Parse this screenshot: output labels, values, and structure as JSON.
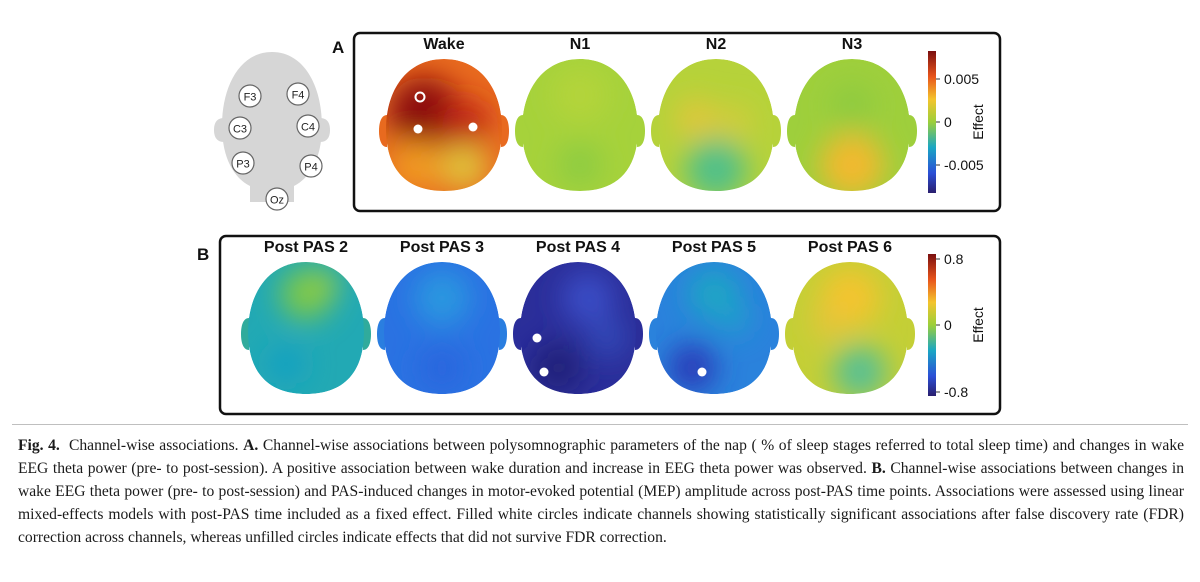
{
  "montage": {
    "channels": [
      "F3",
      "F4",
      "C3",
      "C4",
      "P3",
      "P4",
      "Oz"
    ]
  },
  "panel_a": {
    "letter": "A",
    "maps": [
      "Wake",
      "N1",
      "N2",
      "N3"
    ],
    "colorbar": {
      "ticks": [
        "0.005",
        "0",
        "-0.005"
      ],
      "label": "Effect",
      "range": [
        -0.008,
        0.008
      ]
    }
  },
  "panel_b": {
    "letter": "B",
    "maps": [
      "Post PAS 2",
      "Post PAS 3",
      "Post PAS 4",
      "Post PAS 5",
      "Post PAS 6"
    ],
    "colorbar": {
      "ticks": [
        "0.8",
        "0",
        "-0.8"
      ],
      "label": "Effect",
      "range": [
        -1,
        1
      ]
    }
  },
  "caption": {
    "fig_label": "Fig. 4.",
    "title": "Channel-wise associations.",
    "label_a": "A.",
    "text_a": "Channel-wise associations between polysomnographic parameters of the nap ( % of sleep stages referred to total sleep time) and changes in wake EEG theta power (pre- to post-session). A positive association between wake duration and increase in EEG theta power was observed.",
    "label_b": "B.",
    "text_b": "Channel-wise associations between changes in wake EEG theta power (pre- to post-session) and PAS-induced changes in motor-evoked potential (MEP) amplitude across post-PAS time points. Associations were assessed using linear mixed-effects models with post-PAS time included as a fixed effect. Filled white circles indicate channels showing statistically significant associations after false discovery rate (FDR) correction across channels, whereas unfilled circles indicate effects that did not survive FDR correction."
  },
  "colors": {
    "jet_low": "#2a1e6e",
    "jet_mid": "#9ccf3a",
    "jet_high": "#7a0f0f",
    "frame": "#111111",
    "scalp": "#d6d6d6"
  }
}
